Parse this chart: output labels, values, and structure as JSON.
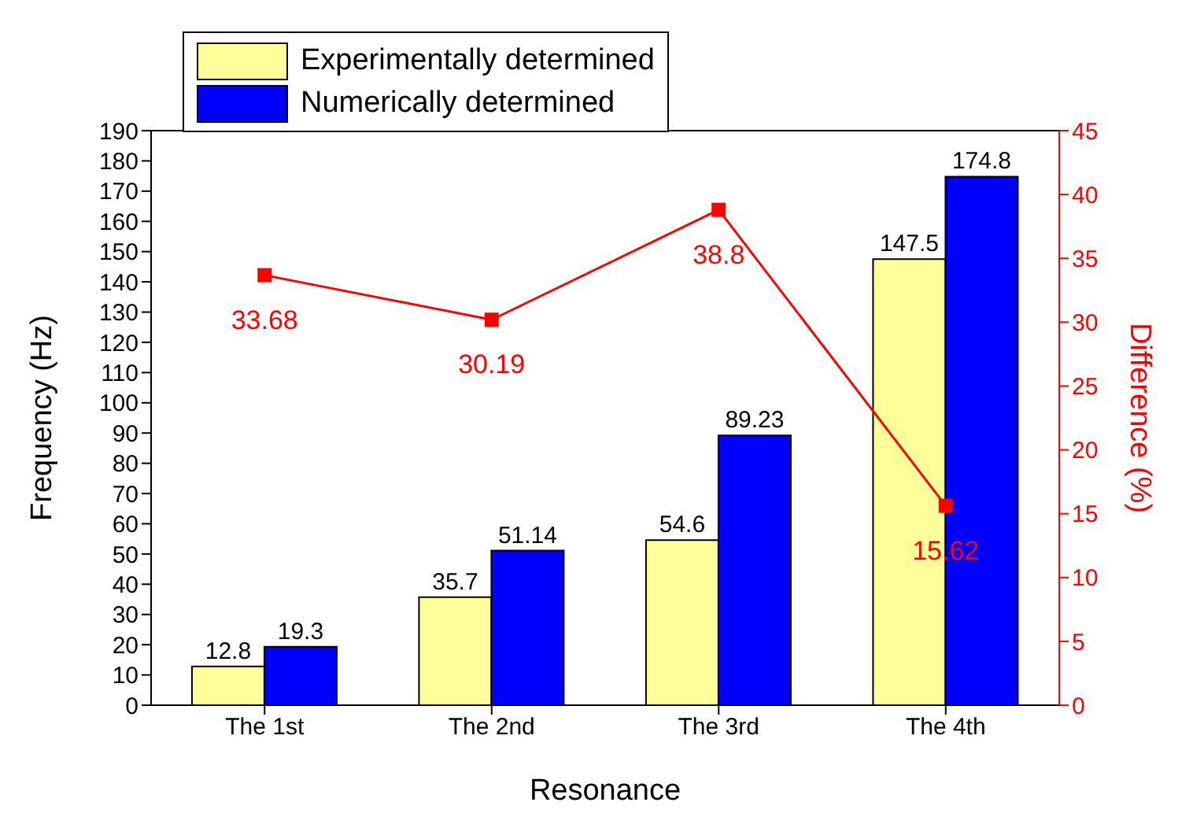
{
  "chart_data": {
    "type": "bar",
    "xlabel": "Resonance",
    "ylabel": "Frequency (Hz)",
    "y2label": "Difference (%)",
    "categories": [
      "The 1st",
      "The 2nd",
      "The 3rd",
      "The 4th"
    ],
    "series": [
      {
        "name": "Experimentally determined",
        "color": "#ffff99",
        "values": [
          12.8,
          35.7,
          54.6,
          147.5
        ]
      },
      {
        "name": "Numerically determined",
        "color": "#0000ff",
        "values": [
          19.3,
          51.14,
          89.23,
          174.8
        ]
      },
      {
        "type": "line",
        "axis": "y2",
        "color": "#ff0000",
        "marker": "square",
        "values": [
          33.68,
          30.19,
          38.8,
          15.62
        ]
      }
    ],
    "ylim": [
      0,
      190
    ],
    "yticks": [
      0,
      10,
      20,
      30,
      40,
      50,
      60,
      70,
      80,
      90,
      100,
      110,
      120,
      130,
      140,
      150,
      160,
      170,
      180,
      190
    ],
    "y2lim": [
      0,
      45
    ],
    "y2ticks": [
      0,
      5,
      10,
      15,
      20,
      25,
      30,
      35,
      40,
      45
    ],
    "data_labels": true,
    "legend": "top left",
    "grid": false
  }
}
